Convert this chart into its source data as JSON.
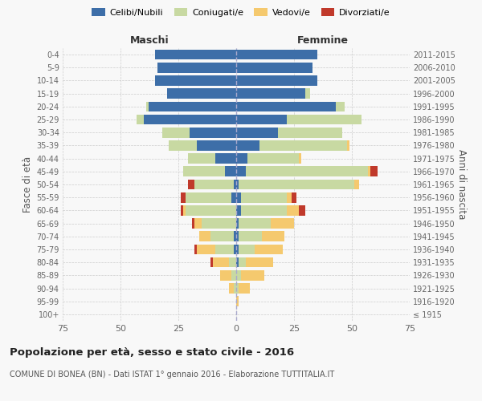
{
  "age_groups": [
    "100+",
    "95-99",
    "90-94",
    "85-89",
    "80-84",
    "75-79",
    "70-74",
    "65-69",
    "60-64",
    "55-59",
    "50-54",
    "45-49",
    "40-44",
    "35-39",
    "30-34",
    "25-29",
    "20-24",
    "15-19",
    "10-14",
    "5-9",
    "0-4"
  ],
  "birth_years": [
    "≤ 1915",
    "1916-1920",
    "1921-1925",
    "1926-1930",
    "1931-1935",
    "1936-1940",
    "1941-1945",
    "1946-1950",
    "1951-1955",
    "1956-1960",
    "1961-1965",
    "1966-1970",
    "1971-1975",
    "1976-1980",
    "1981-1985",
    "1986-1990",
    "1991-1995",
    "1996-2000",
    "2001-2005",
    "2006-2010",
    "2011-2015"
  ],
  "males": {
    "celibi": [
      0,
      0,
      0,
      0,
      0,
      1,
      1,
      0,
      0,
      2,
      1,
      5,
      9,
      17,
      20,
      40,
      38,
      30,
      35,
      34,
      35
    ],
    "coniugati": [
      0,
      0,
      1,
      2,
      3,
      8,
      10,
      15,
      22,
      20,
      17,
      18,
      12,
      12,
      12,
      3,
      1,
      0,
      0,
      0,
      0
    ],
    "vedovi": [
      0,
      0,
      2,
      5,
      7,
      8,
      5,
      3,
      1,
      0,
      0,
      0,
      0,
      0,
      0,
      0,
      0,
      0,
      0,
      0,
      0
    ],
    "divorziati": [
      0,
      0,
      0,
      0,
      1,
      1,
      0,
      1,
      1,
      2,
      3,
      0,
      0,
      0,
      0,
      0,
      0,
      0,
      0,
      0,
      0
    ]
  },
  "females": {
    "nubili": [
      0,
      0,
      0,
      0,
      1,
      1,
      1,
      1,
      2,
      2,
      1,
      4,
      5,
      10,
      18,
      22,
      43,
      30,
      35,
      33,
      35
    ],
    "coniugate": [
      0,
      0,
      1,
      2,
      3,
      7,
      10,
      14,
      20,
      20,
      50,
      53,
      22,
      38,
      28,
      32,
      4,
      2,
      0,
      0,
      0
    ],
    "vedove": [
      0,
      1,
      5,
      10,
      12,
      12,
      10,
      10,
      5,
      2,
      2,
      1,
      1,
      1,
      0,
      0,
      0,
      0,
      0,
      0,
      0
    ],
    "divorziate": [
      0,
      0,
      0,
      0,
      0,
      0,
      0,
      0,
      3,
      2,
      0,
      3,
      0,
      0,
      0,
      0,
      0,
      0,
      0,
      0,
      0
    ]
  },
  "colors": {
    "celibi": "#3d6ea8",
    "coniugati": "#c8d9a2",
    "vedovi": "#f5c96e",
    "divorziati": "#c0392b"
  },
  "xlim": 75,
  "title": "Popolazione per età, sesso e stato civile - 2016",
  "subtitle": "COMUNE DI BONEA (BN) - Dati ISTAT 1° gennaio 2016 - Elaborazione TUTTITALIA.IT",
  "ylabel_left": "Fasce di età",
  "ylabel_right": "Anni di nascita",
  "xlabel_left": "Maschi",
  "xlabel_right": "Femmine",
  "legend_labels": [
    "Celibi/Nubili",
    "Coniugati/e",
    "Vedovi/e",
    "Divorziati/e"
  ],
  "bg_color": "#f8f8f8"
}
